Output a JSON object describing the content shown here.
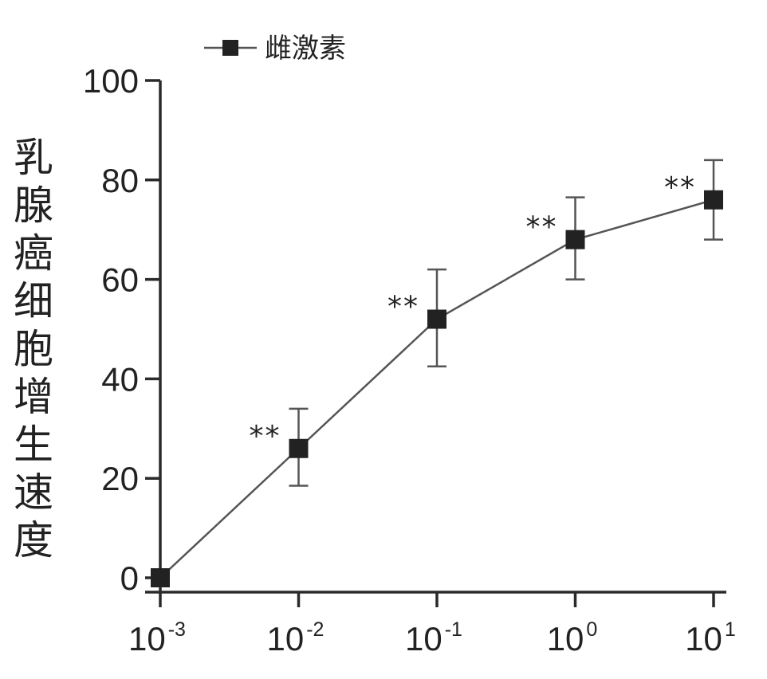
{
  "chart_data": {
    "type": "line",
    "title": "",
    "xlabel": "",
    "ylabel": "乳腺癌细胞增生速度",
    "x_scale": "log",
    "x": [
      0.001,
      0.01,
      0.1,
      1,
      10
    ],
    "x_tick_labels": [
      {
        "base": "10",
        "exp": "-3"
      },
      {
        "base": "10",
        "exp": "-2"
      },
      {
        "base": "10",
        "exp": "-1"
      },
      {
        "base": "10",
        "exp": "0"
      },
      {
        "base": "10",
        "exp": "1"
      }
    ],
    "y_ticks": [
      "0",
      "20",
      "40",
      "60",
      "80",
      "100"
    ],
    "ylim": [
      0,
      100
    ],
    "legend": {
      "position": "top-left",
      "entries": [
        "雌激素"
      ]
    },
    "series": [
      {
        "name": "雌激素",
        "values": [
          0,
          26,
          52,
          68,
          76
        ],
        "error_upper": [
          0,
          34,
          62,
          76.5,
          84
        ],
        "error_lower": [
          0,
          18.5,
          42.5,
          60,
          68
        ],
        "significance": [
          "",
          "**",
          "**",
          "**",
          "**"
        ]
      }
    ]
  }
}
